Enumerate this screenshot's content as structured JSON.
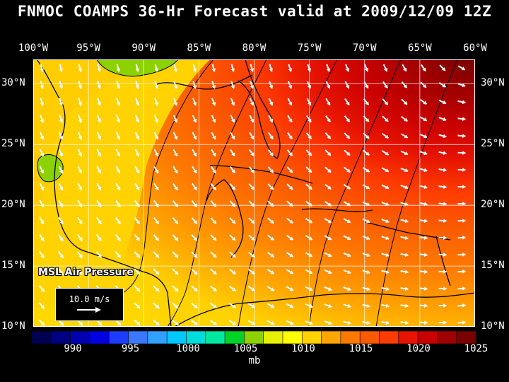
{
  "title": "FNMOC COAMPS 36-Hr Forecast valid at 2009/12/09 12Z",
  "lon_labels": [
    "100°W",
    "95°W",
    "90°W",
    "85°W",
    "80°W",
    "75°W",
    "70°W",
    "65°W",
    "60°W"
  ],
  "lat_labels": [
    "30°N",
    "25°N",
    "20°N",
    "15°N",
    "10°N"
  ],
  "map_label": "MSL Air Pressure",
  "scale_vector": {
    "label": "10.0 m/s"
  },
  "legend": {
    "tick_labels": [
      "990",
      "995",
      "1000",
      "1005",
      "1010",
      "1015",
      "1020",
      "1025"
    ],
    "unit": "mb",
    "colors": [
      "#000050",
      "#000080",
      "#0000b0",
      "#0000e0",
      "#1e3cff",
      "#3c78ff",
      "#32a0ff",
      "#00c8ff",
      "#00dcdc",
      "#00e8a0",
      "#00d228",
      "#8cd200",
      "#e6f000",
      "#ffff00",
      "#ffd200",
      "#ffa500",
      "#ff7800",
      "#fa5a00",
      "#ff3c00",
      "#e61400",
      "#c80000",
      "#a00000",
      "#780000"
    ]
  },
  "extent": {
    "lon": [
      -100,
      -60
    ],
    "lat": [
      10,
      32
    ]
  }
}
